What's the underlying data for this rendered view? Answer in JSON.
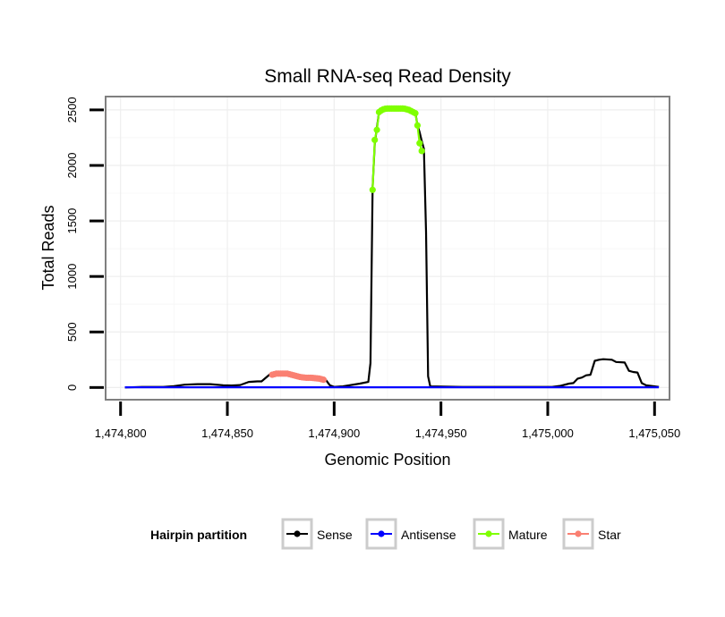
{
  "chart_data": {
    "type": "line",
    "title": "Small RNA-seq Read Density",
    "xlabel": "Genomic Position",
    "ylabel": "Total Reads",
    "xlim": [
      1474793,
      1475057
    ],
    "ylim": [
      -110,
      2620
    ],
    "x_ticks": [
      1474800,
      1474850,
      1474900,
      1474950,
      1475000,
      1475050
    ],
    "x_tick_labels": [
      "1,474,800",
      "1,474,850",
      "1,474,900",
      "1,474,950",
      "1,475,000",
      "1,475,050"
    ],
    "y_ticks": [
      0,
      500,
      1000,
      1500,
      2000,
      2500
    ],
    "y_tick_labels": [
      "0",
      "500",
      "1000",
      "1500",
      "2000",
      "2500"
    ],
    "grid": true,
    "legend": {
      "title": "Hairpin partition",
      "position": "bottom",
      "entries": [
        {
          "label": "Sense",
          "color": "#000000"
        },
        {
          "label": "Antisense",
          "color": "#0000ff"
        },
        {
          "label": "Mature",
          "color": "#7fff00"
        },
        {
          "label": "Star",
          "color": "#fa8072"
        }
      ]
    },
    "series": [
      {
        "name": "Sense",
        "color": "#000000",
        "markers": false,
        "x": [
          1474802,
          1474810,
          1474820,
          1474825,
          1474830,
          1474836,
          1474842,
          1474848,
          1474852,
          1474856,
          1474860,
          1474864,
          1474866,
          1474870,
          1474880,
          1474890,
          1474896,
          1474898,
          1474900,
          1474904,
          1474912,
          1474916,
          1474917,
          1474918,
          1474919,
          1474920,
          1474921,
          1474922,
          1474924,
          1474926,
          1474930,
          1474934,
          1474937,
          1474938,
          1474939,
          1474940,
          1474941,
          1474942,
          1474943,
          1474944,
          1474945,
          1474960,
          1474990,
          1475002,
          1475006,
          1475010,
          1475012,
          1475014,
          1475016,
          1475018,
          1475020,
          1475022,
          1475024,
          1475026,
          1475030,
          1475032,
          1475036,
          1475038,
          1475040,
          1475042,
          1475044,
          1475046,
          1475048,
          1475050,
          1475052
        ],
        "y": [
          0,
          5,
          5,
          12,
          25,
          30,
          30,
          20,
          18,
          22,
          50,
          55,
          55,
          120,
          110,
          90,
          70,
          20,
          5,
          10,
          35,
          50,
          220,
          1800,
          2200,
          2340,
          2480,
          2500,
          2510,
          2510,
          2510,
          2510,
          2500,
          2480,
          2360,
          2300,
          2220,
          2150,
          1400,
          100,
          10,
          5,
          5,
          5,
          15,
          35,
          40,
          80,
          90,
          110,
          115,
          240,
          250,
          255,
          250,
          230,
          225,
          150,
          140,
          135,
          40,
          20,
          15,
          10,
          5
        ]
      },
      {
        "name": "Antisense",
        "color": "#0000ff",
        "markers": false,
        "x": [
          1474802,
          1474850,
          1474900,
          1474950,
          1475000,
          1475052
        ],
        "y": [
          2,
          2,
          2,
          2,
          2,
          2
        ]
      },
      {
        "name": "Mature",
        "color": "#7fff00",
        "markers": true,
        "x": [
          1474918,
          1474919,
          1474920,
          1474921,
          1474922,
          1474923,
          1474924,
          1474925,
          1474926,
          1474927,
          1474928,
          1474929,
          1474930,
          1474931,
          1474932,
          1474933,
          1474934,
          1474935,
          1474936,
          1474937,
          1474938,
          1474939,
          1474940,
          1474941
        ],
        "y": [
          1780,
          2230,
          2320,
          2480,
          2495,
          2505,
          2510,
          2512,
          2512,
          2512,
          2512,
          2512,
          2512,
          2512,
          2512,
          2510,
          2505,
          2500,
          2490,
          2480,
          2470,
          2360,
          2200,
          2130
        ]
      },
      {
        "name": "Star",
        "color": "#fa8072",
        "markers": true,
        "x": [
          1474871,
          1474872,
          1474873,
          1474874,
          1474875,
          1474876,
          1474877,
          1474878,
          1474879,
          1474880,
          1474881,
          1474882,
          1474883,
          1474884,
          1474885,
          1474886,
          1474887,
          1474888,
          1474889,
          1474890,
          1474891,
          1474892,
          1474893,
          1474894,
          1474895
        ],
        "y": [
          115,
          120,
          125,
          125,
          125,
          125,
          125,
          125,
          120,
          115,
          110,
          105,
          100,
          95,
          92,
          90,
          88,
          88,
          88,
          86,
          84,
          82,
          80,
          75,
          70
        ]
      }
    ]
  }
}
